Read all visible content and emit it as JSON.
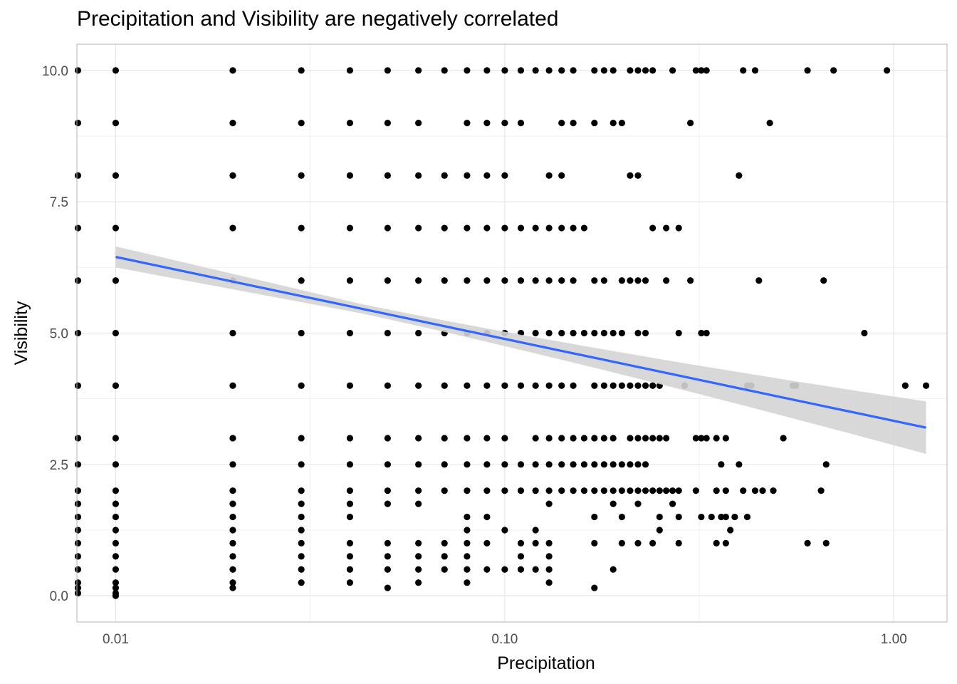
{
  "chart_data": {
    "type": "scatter",
    "title": "Precipitation and Visibility are negatively correlated",
    "xlabel": "Precipitation",
    "ylabel": "Visibility",
    "x_scale": "log10",
    "xlim": [
      0.00795,
      1.37
    ],
    "ylim": [
      -0.5,
      10.5
    ],
    "x_ticks": [
      0.01,
      0.1,
      1.0
    ],
    "x_tick_labels": [
      "0.01",
      "0.10",
      "1.00"
    ],
    "y_ticks": [
      0,
      2.5,
      5,
      7.5,
      10
    ],
    "y_tick_labels": [
      "0.0",
      "2.5",
      "5.0",
      "7.5",
      "10.0"
    ],
    "grid": true,
    "legend": "none",
    "colors": {
      "points": "#000000",
      "fit_line": "#3366ff",
      "ribbon": "#d4d4d4",
      "grid": "#e6e6e6",
      "panel_border": "#b3b3b3"
    },
    "series": [
      {
        "kind": "points",
        "by_y": [
          {
            "y": 10,
            "x": [
              0.008,
              0.01,
              0.02,
              0.03,
              0.04,
              0.05,
              0.06,
              0.07,
              0.08,
              0.09,
              0.1,
              0.11,
              0.12,
              0.13,
              0.14,
              0.15,
              0.17,
              0.18,
              0.19,
              0.21,
              0.22,
              0.23,
              0.24,
              0.27,
              0.31,
              0.32,
              0.33,
              0.41,
              0.44,
              0.6,
              0.7,
              0.96
            ]
          },
          {
            "y": 9,
            "x": [
              0.008,
              0.01,
              0.02,
              0.03,
              0.04,
              0.05,
              0.06,
              0.08,
              0.09,
              0.1,
              0.11,
              0.14,
              0.15,
              0.17,
              0.19,
              0.2,
              0.3,
              0.48
            ]
          },
          {
            "y": 8,
            "x": [
              0.008,
              0.01,
              0.02,
              0.03,
              0.04,
              0.05,
              0.06,
              0.07,
              0.08,
              0.09,
              0.1,
              0.13,
              0.14,
              0.21,
              0.22,
              0.4
            ]
          },
          {
            "y": 7,
            "x": [
              0.008,
              0.01,
              0.02,
              0.03,
              0.04,
              0.05,
              0.06,
              0.07,
              0.08,
              0.09,
              0.1,
              0.11,
              0.12,
              0.13,
              0.14,
              0.15,
              0.16,
              0.24,
              0.26,
              0.28
            ]
          },
          {
            "y": 6,
            "x": [
              0.008,
              0.01,
              0.02,
              0.03,
              0.04,
              0.05,
              0.06,
              0.07,
              0.08,
              0.09,
              0.1,
              0.11,
              0.12,
              0.13,
              0.14,
              0.15,
              0.17,
              0.18,
              0.2,
              0.21,
              0.22,
              0.23,
              0.26,
              0.3,
              0.45,
              0.66
            ]
          },
          {
            "y": 5,
            "x": [
              0.008,
              0.01,
              0.02,
              0.03,
              0.04,
              0.05,
              0.06,
              0.07,
              0.08,
              0.09,
              0.1,
              0.11,
              0.12,
              0.13,
              0.14,
              0.15,
              0.16,
              0.17,
              0.18,
              0.19,
              0.2,
              0.22,
              0.23,
              0.28,
              0.32,
              0.33,
              0.84
            ]
          },
          {
            "y": 4,
            "x": [
              0.008,
              0.01,
              0.02,
              0.03,
              0.04,
              0.05,
              0.06,
              0.07,
              0.08,
              0.09,
              0.1,
              0.11,
              0.12,
              0.13,
              0.14,
              0.15,
              0.17,
              0.18,
              0.19,
              0.2,
              0.21,
              0.22,
              0.23,
              0.24,
              0.25,
              0.29,
              0.42,
              0.43,
              0.55,
              0.56,
              1.07,
              1.21
            ]
          },
          {
            "y": 3,
            "x": [
              0.008,
              0.01,
              0.02,
              0.03,
              0.04,
              0.05,
              0.06,
              0.07,
              0.08,
              0.09,
              0.1,
              0.12,
              0.13,
              0.14,
              0.15,
              0.16,
              0.17,
              0.18,
              0.19,
              0.21,
              0.22,
              0.23,
              0.24,
              0.25,
              0.26,
              0.31,
              0.32,
              0.33,
              0.35,
              0.37,
              0.52
            ]
          },
          {
            "y": 2.5,
            "x": [
              0.008,
              0.01,
              0.02,
              0.03,
              0.04,
              0.05,
              0.06,
              0.07,
              0.08,
              0.09,
              0.1,
              0.11,
              0.12,
              0.13,
              0.14,
              0.15,
              0.16,
              0.17,
              0.18,
              0.19,
              0.2,
              0.21,
              0.22,
              0.23,
              0.36,
              0.4,
              0.67
            ]
          },
          {
            "y": 2,
            "x": [
              0.008,
              0.01,
              0.02,
              0.03,
              0.04,
              0.05,
              0.06,
              0.07,
              0.08,
              0.09,
              0.1,
              0.11,
              0.12,
              0.13,
              0.14,
              0.15,
              0.16,
              0.17,
              0.18,
              0.19,
              0.2,
              0.21,
              0.22,
              0.23,
              0.24,
              0.25,
              0.26,
              0.27,
              0.28,
              0.31,
              0.35,
              0.37,
              0.41,
              0.44,
              0.46,
              0.49,
              0.65
            ]
          },
          {
            "y": 1.75,
            "x": [
              0.008,
              0.01,
              0.02,
              0.03,
              0.04,
              0.05,
              0.06,
              0.13,
              0.19,
              0.22,
              0.27
            ]
          },
          {
            "y": 1.5,
            "x": [
              0.008,
              0.01,
              0.02,
              0.03,
              0.04,
              0.08,
              0.09,
              0.17,
              0.2,
              0.25,
              0.28,
              0.32,
              0.34,
              0.36,
              0.37,
              0.39,
              0.42
            ]
          },
          {
            "y": 1.25,
            "x": [
              0.008,
              0.01,
              0.02,
              0.03,
              0.08,
              0.1,
              0.12,
              0.25,
              0.38
            ]
          },
          {
            "y": 1,
            "x": [
              0.008,
              0.01,
              0.02,
              0.03,
              0.04,
              0.05,
              0.06,
              0.07,
              0.08,
              0.09,
              0.11,
              0.12,
              0.13,
              0.17,
              0.2,
              0.22,
              0.24,
              0.28,
              0.35,
              0.37,
              0.6,
              0.67
            ]
          },
          {
            "y": 0.75,
            "x": [
              0.008,
              0.01,
              0.02,
              0.03,
              0.04,
              0.05,
              0.06,
              0.07,
              0.08,
              0.11,
              0.13
            ]
          },
          {
            "y": 0.5,
            "x": [
              0.008,
              0.01,
              0.02,
              0.03,
              0.04,
              0.05,
              0.06,
              0.07,
              0.08,
              0.09,
              0.1,
              0.11,
              0.12,
              0.13,
              0.19
            ]
          },
          {
            "y": 0.25,
            "x": [
              0.008,
              0.01,
              0.02,
              0.03,
              0.04,
              0.06,
              0.08,
              0.13
            ]
          },
          {
            "y": 0.15,
            "x": [
              0.008,
              0.01,
              0.02,
              0.05,
              0.17
            ]
          },
          {
            "y": 0.05,
            "x": [
              0.008,
              0.01
            ]
          },
          {
            "y": 0,
            "x": [
              0.01
            ]
          }
        ]
      },
      {
        "kind": "linear-fit",
        "x_range": [
          0.01,
          1.21
        ],
        "y_at_x_start": 6.45,
        "y_at_x_end": 3.2,
        "ci_at_x_start": [
          6.25,
          6.65
        ],
        "ci_at_x_end": [
          2.7,
          3.7
        ]
      }
    ]
  }
}
